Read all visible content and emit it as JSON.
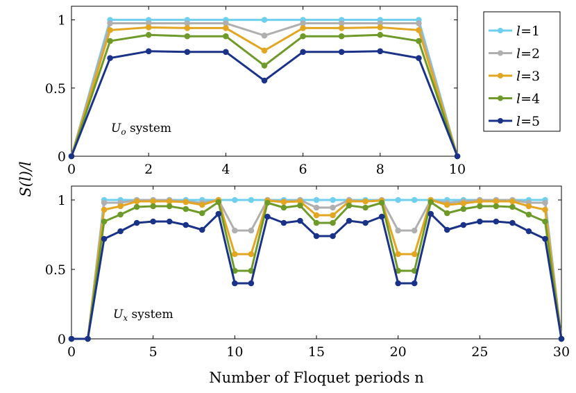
{
  "y_label": "S(l)/l",
  "legend": [
    {
      "label": "l=1",
      "color": "#6ED0EE"
    },
    {
      "label": "l=2",
      "color": "#AFAFAF"
    },
    {
      "label": "l=3",
      "color": "#E2A623"
    },
    {
      "label": "l=4",
      "color": "#6E9A2A"
    },
    {
      "label": "l=5",
      "color": "#1A3288"
    }
  ],
  "chart_data": [
    {
      "type": "line",
      "panel": "top",
      "annotation": "U_o system",
      "x": [
        0,
        1,
        2,
        3,
        4,
        5,
        6,
        7,
        8,
        9,
        10
      ],
      "xlim": [
        0,
        10
      ],
      "ylim": [
        0,
        1.1
      ],
      "xticks": [
        0,
        2,
        4,
        6,
        8,
        10
      ],
      "yticks": [
        0,
        0.5,
        1
      ],
      "xlabel": "",
      "series": [
        {
          "name": "l=1",
          "values": [
            0,
            1,
            1,
            1,
            1,
            1,
            1,
            1,
            1,
            1,
            0
          ]
        },
        {
          "name": "l=2",
          "values": [
            0,
            0.975,
            0.975,
            0.975,
            0.975,
            0.885,
            0.975,
            0.975,
            0.975,
            0.975,
            0
          ]
        },
        {
          "name": "l=3",
          "values": [
            0,
            0.925,
            0.945,
            0.94,
            0.94,
            0.775,
            0.94,
            0.94,
            0.945,
            0.925,
            0
          ]
        },
        {
          "name": "l=4",
          "values": [
            0,
            0.845,
            0.89,
            0.88,
            0.88,
            0.665,
            0.88,
            0.88,
            0.89,
            0.845,
            0
          ]
        },
        {
          "name": "l=5",
          "values": [
            0,
            0.72,
            0.77,
            0.765,
            0.765,
            0.555,
            0.765,
            0.765,
            0.77,
            0.72,
            0
          ]
        }
      ]
    },
    {
      "type": "line",
      "panel": "bottom",
      "annotation": "U_x system",
      "x": [
        0,
        1,
        2,
        3,
        4,
        5,
        6,
        7,
        8,
        9,
        10,
        11,
        12,
        13,
        14,
        15,
        16,
        17,
        18,
        19,
        20,
        21,
        22,
        23,
        24,
        25,
        26,
        27,
        28,
        29,
        30
      ],
      "xlim": [
        0,
        30
      ],
      "ylim": [
        0,
        1.1
      ],
      "xticks": [
        0,
        5,
        10,
        15,
        20,
        25,
        30
      ],
      "yticks": [
        0,
        0.5,
        1
      ],
      "xlabel": "Number of Floquet periods n",
      "series": [
        {
          "name": "l=1",
          "values": [
            0,
            0,
            1,
            1,
            1,
            1,
            1,
            1,
            1,
            1,
            1,
            1,
            1,
            1,
            1,
            1,
            1,
            1,
            1,
            1,
            1,
            1,
            1,
            1,
            1,
            1,
            1,
            1,
            1,
            1,
            0
          ]
        },
        {
          "name": "l=2",
          "values": [
            0,
            0,
            0.98,
            0.98,
            1,
            1,
            1,
            0.99,
            0.98,
            1,
            0.78,
            0.78,
            1,
            0.99,
            1,
            0.945,
            0.945,
            1,
            0.99,
            1,
            0.78,
            0.78,
            1,
            0.98,
            0.99,
            1,
            1,
            1,
            0.98,
            0.98,
            0
          ]
        },
        {
          "name": "l=3",
          "values": [
            0,
            0,
            0.93,
            0.955,
            0.99,
            0.99,
            0.99,
            0.985,
            0.965,
            1,
            0.61,
            0.61,
            0.995,
            0.985,
            0.99,
            0.89,
            0.89,
            0.99,
            0.99,
            0.995,
            0.61,
            0.61,
            1,
            0.965,
            0.975,
            0.99,
            0.99,
            0.99,
            0.955,
            0.93,
            0
          ]
        },
        {
          "name": "l=4",
          "values": [
            0,
            0,
            0.845,
            0.895,
            0.95,
            0.955,
            0.955,
            0.935,
            0.905,
            0.985,
            0.49,
            0.49,
            0.98,
            0.945,
            0.96,
            0.835,
            0.835,
            0.96,
            0.945,
            0.98,
            0.49,
            0.49,
            0.985,
            0.905,
            0.935,
            0.955,
            0.955,
            0.95,
            0.895,
            0.845,
            0
          ]
        },
        {
          "name": "l=5",
          "values": [
            0,
            0,
            0.72,
            0.775,
            0.835,
            0.845,
            0.845,
            0.82,
            0.785,
            0.9,
            0.4,
            0.4,
            0.88,
            0.835,
            0.85,
            0.74,
            0.74,
            0.85,
            0.835,
            0.88,
            0.4,
            0.4,
            0.9,
            0.785,
            0.82,
            0.845,
            0.845,
            0.835,
            0.775,
            0.72,
            0
          ]
        }
      ]
    }
  ]
}
